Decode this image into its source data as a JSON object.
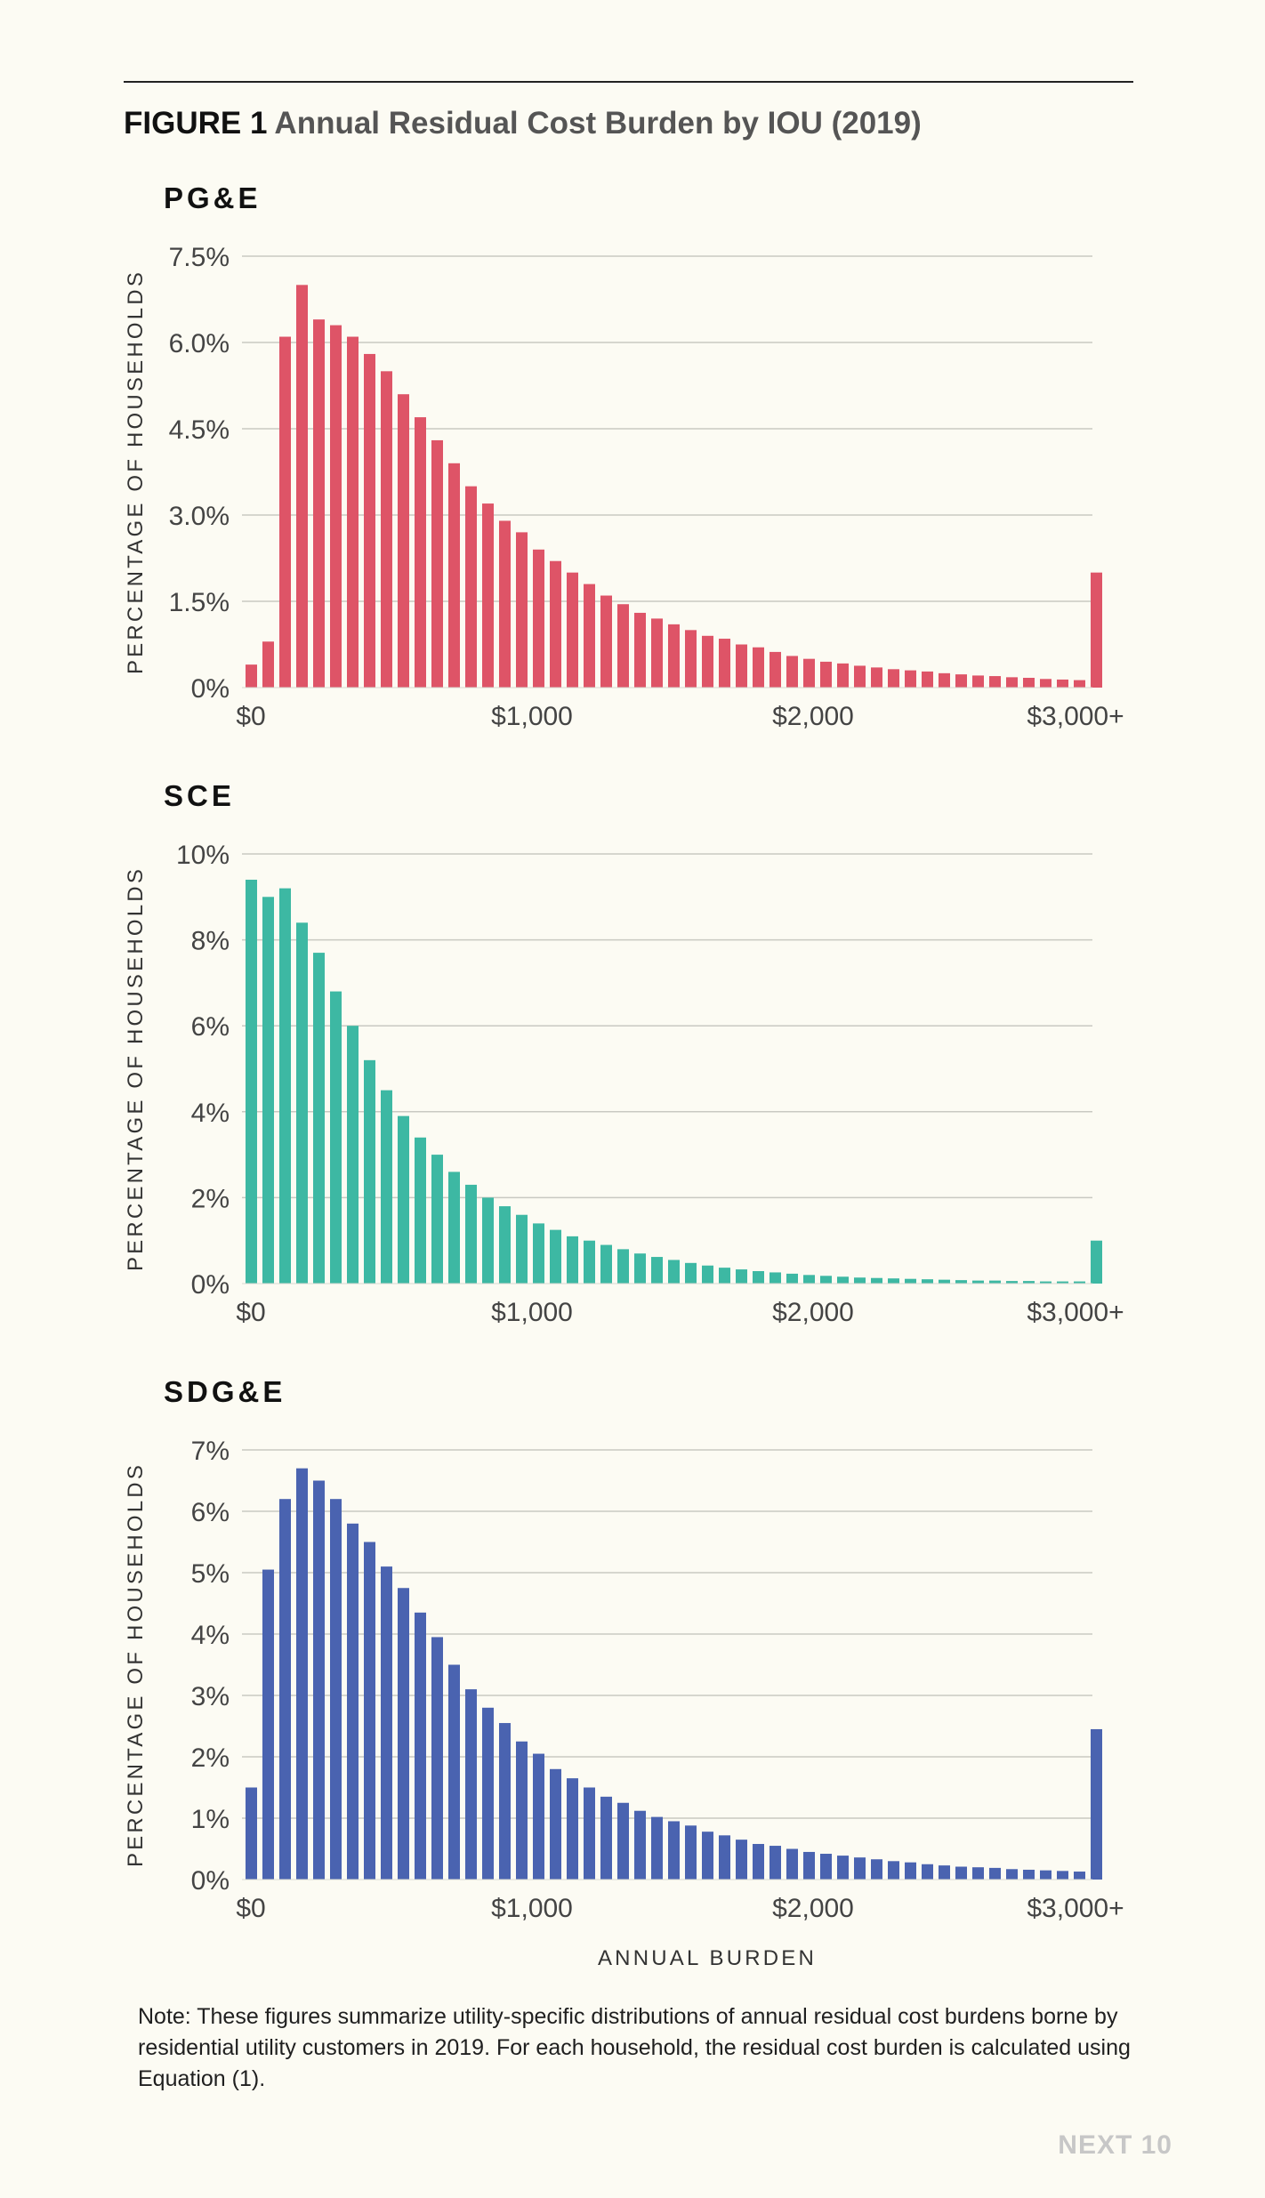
{
  "figure": {
    "label": "FIGURE 1",
    "title": "Annual Residual Cost Burden by IOU (2019)"
  },
  "chart_data": [
    {
      "type": "bar",
      "title": "PG&E",
      "ylabel": "PERCENTAGE OF HOUSEHOLDS",
      "xlabel": "",
      "ylim": [
        0,
        7.5
      ],
      "yticks": [
        "0%",
        "1.5%",
        "3.0%",
        "4.5%",
        "6.0%",
        "7.5%"
      ],
      "xticks": [
        "$0",
        "$1,000",
        "$2,000",
        "$3,000+"
      ],
      "color": "#de5467",
      "grid": true,
      "values": [
        0.4,
        0.8,
        6.1,
        7.0,
        6.4,
        6.3,
        6.1,
        5.8,
        5.5,
        5.1,
        4.7,
        4.3,
        3.9,
        3.5,
        3.2,
        2.9,
        2.7,
        2.4,
        2.2,
        2.0,
        1.8,
        1.6,
        1.45,
        1.3,
        1.2,
        1.1,
        1.0,
        0.9,
        0.85,
        0.75,
        0.7,
        0.62,
        0.55,
        0.5,
        0.45,
        0.42,
        0.38,
        0.35,
        0.32,
        0.3,
        0.28,
        0.25,
        0.23,
        0.21,
        0.2,
        0.18,
        0.17,
        0.15,
        0.14,
        0.13,
        2.0
      ]
    },
    {
      "type": "bar",
      "title": "SCE",
      "ylabel": "PERCENTAGE OF HOUSEHOLDS",
      "xlabel": "",
      "ylim": [
        0,
        10
      ],
      "yticks": [
        "0%",
        "2%",
        "4%",
        "6%",
        "8%",
        "10%"
      ],
      "xticks": [
        "$0",
        "$1,000",
        "$2,000",
        "$3,000+"
      ],
      "color": "#3db8a3",
      "grid": true,
      "values": [
        9.4,
        9.0,
        9.2,
        8.4,
        7.7,
        6.8,
        6.0,
        5.2,
        4.5,
        3.9,
        3.4,
        3.0,
        2.6,
        2.3,
        2.0,
        1.8,
        1.6,
        1.4,
        1.25,
        1.1,
        1.0,
        0.9,
        0.8,
        0.7,
        0.62,
        0.55,
        0.48,
        0.42,
        0.37,
        0.33,
        0.29,
        0.26,
        0.23,
        0.2,
        0.18,
        0.16,
        0.14,
        0.13,
        0.12,
        0.11,
        0.1,
        0.09,
        0.08,
        0.07,
        0.07,
        0.06,
        0.06,
        0.05,
        0.05,
        0.05,
        1.0
      ]
    },
    {
      "type": "bar",
      "title": "SDG&E",
      "ylabel": "PERCENTAGE OF HOUSEHOLDS",
      "xlabel": "ANNUAL BURDEN",
      "ylim": [
        0,
        7
      ],
      "yticks": [
        "0%",
        "1%",
        "2%",
        "3%",
        "4%",
        "5%",
        "6%",
        "7%"
      ],
      "xticks": [
        "$0",
        "$1,000",
        "$2,000",
        "$3,000+"
      ],
      "color": "#4a63b0",
      "grid": true,
      "values": [
        1.5,
        5.05,
        6.2,
        6.7,
        6.5,
        6.2,
        5.8,
        5.5,
        5.1,
        4.75,
        4.35,
        3.95,
        3.5,
        3.1,
        2.8,
        2.55,
        2.25,
        2.05,
        1.8,
        1.65,
        1.5,
        1.35,
        1.25,
        1.12,
        1.02,
        0.95,
        0.88,
        0.78,
        0.72,
        0.65,
        0.58,
        0.55,
        0.5,
        0.45,
        0.42,
        0.39,
        0.36,
        0.33,
        0.3,
        0.28,
        0.25,
        0.23,
        0.21,
        0.2,
        0.19,
        0.17,
        0.16,
        0.15,
        0.14,
        0.13,
        2.45
      ]
    }
  ],
  "note": "Note: These figures summarize utility-specific distributions of annual residual cost burdens borne by residential utility customers in 2019. For each household, the residual cost burden is calculated using Equation (1).",
  "brand": "NEXT 10"
}
